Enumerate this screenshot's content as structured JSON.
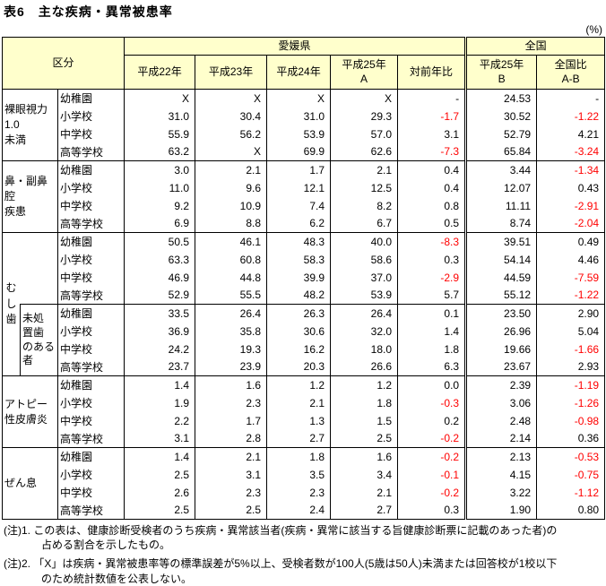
{
  "page": {
    "title": "表6　主な疾病・異常被患率",
    "unit": "(%)"
  },
  "colors": {
    "header_bg": "#FFFFCC",
    "negative_text": "#FF0000",
    "border": "#000000"
  },
  "table": {
    "corner": "区分",
    "region_header": "愛媛県",
    "national_header": "全国",
    "year_cols": [
      "平成22年",
      "平成23年",
      "平成24年",
      "平成25年\nA",
      "対前年比"
    ],
    "national_cols": [
      "平成25年\nB",
      "全国比\nA-B"
    ],
    "groups": [
      {
        "label": "裸眼視力\n1.0\n未満",
        "rows": [
          {
            "school": "幼稚園",
            "values": [
              "X",
              "X",
              "X",
              "X",
              "-",
              "24.53",
              "-"
            ]
          },
          {
            "school": "小学校",
            "values": [
              "31.0",
              "30.4",
              "31.0",
              "29.3",
              "-1.7",
              "30.52",
              "-1.22"
            ]
          },
          {
            "school": "中学校",
            "values": [
              "55.9",
              "56.2",
              "53.9",
              "57.0",
              "3.1",
              "52.79",
              "4.21"
            ]
          },
          {
            "school": "高等学校",
            "values": [
              "63.2",
              "X",
              "69.9",
              "62.6",
              "-7.3",
              "65.84",
              "-3.24"
            ]
          }
        ]
      },
      {
        "label": "鼻・副鼻腔\n疾患",
        "rows": [
          {
            "school": "幼稚園",
            "values": [
              "3.0",
              "2.1",
              "1.7",
              "2.1",
              "0.4",
              "3.44",
              "-1.34"
            ]
          },
          {
            "school": "小学校",
            "values": [
              "11.0",
              "9.6",
              "12.1",
              "12.5",
              "0.4",
              "12.07",
              "0.43"
            ]
          },
          {
            "school": "中学校",
            "values": [
              "9.2",
              "10.9",
              "7.4",
              "8.2",
              "0.8",
              "11.11",
              "-2.91"
            ]
          },
          {
            "school": "高等学校",
            "values": [
              "6.9",
              "8.8",
              "6.2",
              "6.7",
              "0.5",
              "8.74",
              "-2.04"
            ]
          }
        ]
      },
      {
        "label": "む\nし\n歯",
        "vertical": true,
        "rows": [
          {
            "school": "幼稚園",
            "values": [
              "50.5",
              "46.1",
              "48.3",
              "40.0",
              "-8.3",
              "39.51",
              "0.49"
            ]
          },
          {
            "school": "小学校",
            "values": [
              "63.3",
              "60.8",
              "58.3",
              "58.6",
              "0.3",
              "54.14",
              "4.46"
            ]
          },
          {
            "school": "中学校",
            "values": [
              "46.9",
              "44.8",
              "39.9",
              "37.0",
              "-2.9",
              "44.59",
              "-7.59"
            ]
          },
          {
            "school": "高等学校",
            "values": [
              "52.9",
              "55.5",
              "48.2",
              "53.9",
              "5.7",
              "55.12",
              "-1.22"
            ]
          }
        ]
      },
      {
        "sublabel": "未処\n置歯\nのある\n者",
        "rows": [
          {
            "school": "幼稚園",
            "values": [
              "33.5",
              "26.4",
              "26.3",
              "26.4",
              "0.1",
              "23.50",
              "2.90"
            ]
          },
          {
            "school": "小学校",
            "values": [
              "36.9",
              "35.8",
              "30.6",
              "32.0",
              "1.4",
              "26.96",
              "5.04"
            ]
          },
          {
            "school": "中学校",
            "values": [
              "24.2",
              "19.3",
              "16.2",
              "18.0",
              "1.8",
              "19.66",
              "-1.66"
            ]
          },
          {
            "school": "高等学校",
            "values": [
              "23.7",
              "23.9",
              "20.3",
              "26.6",
              "6.3",
              "23.67",
              "2.93"
            ]
          }
        ]
      },
      {
        "label": "アトピー\n性皮膚炎",
        "rows": [
          {
            "school": "幼稚園",
            "values": [
              "1.4",
              "1.6",
              "1.2",
              "1.2",
              "0.0",
              "2.39",
              "-1.19"
            ]
          },
          {
            "school": "小学校",
            "values": [
              "1.9",
              "2.3",
              "2.1",
              "1.8",
              "-0.3",
              "3.06",
              "-1.26"
            ]
          },
          {
            "school": "中学校",
            "values": [
              "2.2",
              "1.7",
              "1.3",
              "1.5",
              "0.2",
              "2.48",
              "-0.98"
            ]
          },
          {
            "school": "高等学校",
            "values": [
              "3.1",
              "2.8",
              "2.7",
              "2.5",
              "-0.2",
              "2.14",
              "0.36"
            ]
          }
        ]
      },
      {
        "label": "ぜん息",
        "rows": [
          {
            "school": "幼稚園",
            "values": [
              "1.4",
              "2.1",
              "1.8",
              "1.6",
              "-0.2",
              "2.13",
              "-0.53"
            ]
          },
          {
            "school": "小学校",
            "values": [
              "2.5",
              "3.1",
              "3.5",
              "3.4",
              "-0.1",
              "4.15",
              "-0.75"
            ]
          },
          {
            "school": "中学校",
            "values": [
              "2.6",
              "2.3",
              "2.3",
              "2.1",
              "-0.2",
              "3.22",
              "-1.12"
            ]
          },
          {
            "school": "高等学校",
            "values": [
              "2.5",
              "2.5",
              "2.4",
              "2.7",
              "0.3",
              "1.90",
              "0.80"
            ]
          }
        ]
      }
    ]
  },
  "notes": [
    {
      "lines": [
        "(注)1. この表は、健康診断受検者のうち疾病・異常該当者(疾病・異常に該当する旨健康診断票に記載のあった者)の",
        "占める割合を示したもの。"
      ]
    },
    {
      "lines": [
        "(注)2. 「X」は疾病・異常被患率等の標準誤差が5%以上、受検者数が100人(5歳は50人)未満または回答校が1校以下",
        "のため統計数値を公表しない。"
      ]
    }
  ]
}
